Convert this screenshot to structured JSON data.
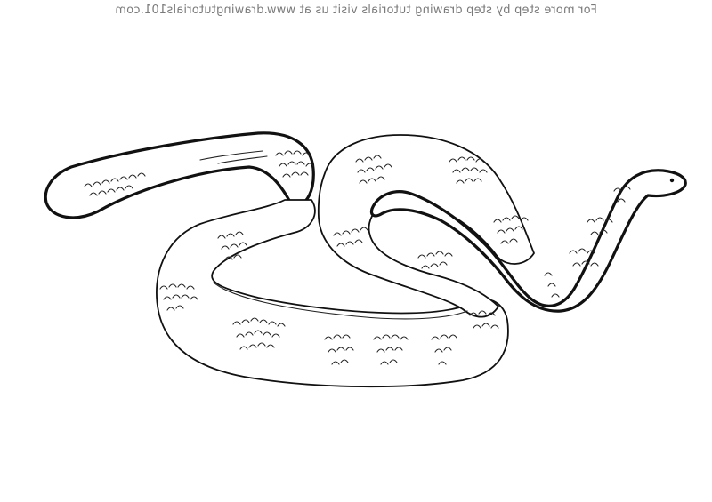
{
  "watermark": {
    "text": "For more step by step drawing tutorials visit us at www.drawingtutorials101.com",
    "mirrored": true
  },
  "illustration": {
    "subject": "snake-line-art",
    "line_color": "#111111",
    "background_color": "#ffffff"
  }
}
